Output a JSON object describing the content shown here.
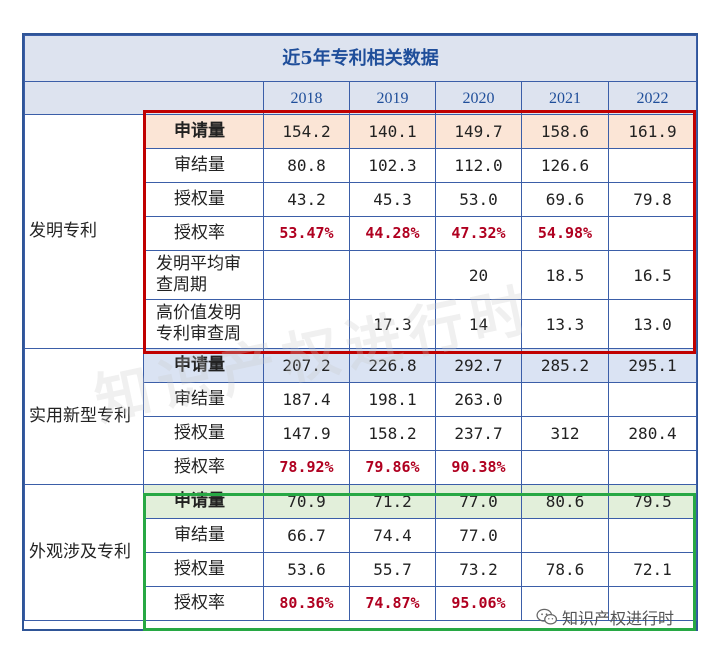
{
  "title": "近5年专利相关数据",
  "years": [
    "2018",
    "2019",
    "2020",
    "2021",
    "2022"
  ],
  "groups": {
    "invention": {
      "label": "发明专利",
      "rows": [
        {
          "metric": "申请量",
          "values": [
            "154.2",
            "140.1",
            "149.7",
            "158.6",
            "161.9"
          ]
        },
        {
          "metric": "审结量",
          "values": [
            "80.8",
            "102.3",
            "112.0",
            "126.6",
            ""
          ]
        },
        {
          "metric": "授权量",
          "values": [
            "43.2",
            "45.3",
            "53.0",
            "69.6",
            "79.8"
          ]
        },
        {
          "metric": "授权率",
          "values": [
            "53.47%",
            "44.28%",
            "47.32%",
            "54.98%",
            ""
          ]
        },
        {
          "metric_line1": "发明平均审",
          "metric_line2": "查周期",
          "values": [
            "",
            "",
            "20",
            "18.5",
            "16.5"
          ]
        },
        {
          "metric_line1": "高价值发明",
          "metric_line2": "专利审查周",
          "values": [
            "",
            "17.3",
            "14",
            "13.3",
            "13.0"
          ]
        }
      ]
    },
    "utility": {
      "label": "实用新型专利",
      "rows": [
        {
          "metric": "申请量",
          "values": [
            "207.2",
            "226.8",
            "292.7",
            "285.2",
            "295.1"
          ]
        },
        {
          "metric": "审结量",
          "values": [
            "187.4",
            "198.1",
            "263.0",
            "",
            ""
          ]
        },
        {
          "metric": "授权量",
          "values": [
            "147.9",
            "158.2",
            "237.7",
            "312",
            "280.4"
          ]
        },
        {
          "metric": "授权率",
          "values": [
            "78.92%",
            "79.86%",
            "90.38%",
            "",
            ""
          ]
        }
      ]
    },
    "design": {
      "label": "外观涉及专利",
      "rows": [
        {
          "metric": "申请量",
          "values": [
            "70.9",
            "71.2",
            "77.0",
            "80.6",
            "79.5"
          ]
        },
        {
          "metric": "审结量",
          "values": [
            "66.7",
            "74.4",
            "77.0",
            "",
            ""
          ]
        },
        {
          "metric": "授权量",
          "values": [
            "53.6",
            "55.7",
            "73.2",
            "78.6",
            "72.1"
          ]
        },
        {
          "metric": "授权率",
          "values": [
            "80.36%",
            "74.87%",
            "95.06%",
            "",
            ""
          ]
        }
      ]
    }
  },
  "watermark": "知识产权进行时",
  "source_logo": "知识产权进行时",
  "colors": {
    "border_blue": "#2f5597",
    "header_bg": "#dde3ef",
    "rate_red": "#b00020",
    "peach_row": "#fbe5d6",
    "blue_row": "#dae3f3",
    "green_row": "#e2efda",
    "highlight_red": "#c00000",
    "highlight_green": "#27a844"
  },
  "icons": {
    "logo": "wechat-icon"
  }
}
